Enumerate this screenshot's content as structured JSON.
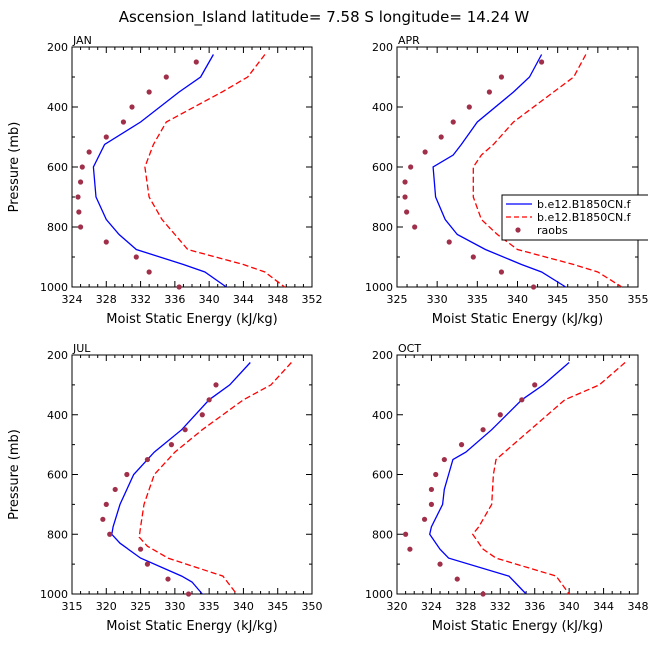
{
  "figure_title": "Ascension_Island   latitude= 7.58 S longitude= 14.24 W",
  "legend": {
    "entries": [
      {
        "label": "b.e12.B1850CN.f",
        "style": "solid",
        "color": "#0000ff"
      },
      {
        "label": "b.e12.B1850CN.f",
        "style": "dashed",
        "color": "#ff0000"
      },
      {
        "label": "raobs",
        "style": "dots",
        "color": "#a0304a"
      }
    ]
  },
  "chart_data": [
    {
      "type": "line",
      "title": "JAN",
      "xlabel": "Moist Static Energy (kJ/kg)",
      "ylabel": "Pressure (mb)",
      "xlim": [
        324,
        352
      ],
      "xticks": [
        324,
        328,
        332,
        336,
        340,
        344,
        348,
        352
      ],
      "ylim": [
        200,
        1000
      ],
      "yticks": [
        200,
        400,
        600,
        800,
        1000
      ],
      "series": [
        {
          "style": "solid",
          "color": "#0000ff",
          "points": [
            [
              340.5,
              225
            ],
            [
              339,
              300
            ],
            [
              336.5,
              350
            ],
            [
              332,
              450
            ],
            [
              327.8,
              525
            ],
            [
              326.5,
              600
            ],
            [
              326.8,
              700
            ],
            [
              328,
              775
            ],
            [
              329.5,
              825
            ],
            [
              331.5,
              875
            ],
            [
              337,
              925
            ],
            [
              339.5,
              950
            ],
            [
              342,
              1000
            ]
          ]
        },
        {
          "style": "dashed",
          "color": "#ff0000",
          "points": [
            [
              346.5,
              225
            ],
            [
              344.5,
              300
            ],
            [
              341.5,
              350
            ],
            [
              335,
              450
            ],
            [
              333.5,
              525
            ],
            [
              332.5,
              600
            ],
            [
              333,
              700
            ],
            [
              334.5,
              775
            ],
            [
              336,
              825
            ],
            [
              337.5,
              875
            ],
            [
              344,
              925
            ],
            [
              346.5,
              950
            ],
            [
              348.8,
              1000
            ]
          ]
        },
        {
          "style": "dots",
          "color": "#a0304a",
          "points": [
            [
              338.5,
              250
            ],
            [
              335,
              300
            ],
            [
              333,
              350
            ],
            [
              331,
              400
            ],
            [
              330,
              450
            ],
            [
              328,
              500
            ],
            [
              326,
              550
            ],
            [
              325.2,
              600
            ],
            [
              325,
              650
            ],
            [
              324.7,
              700
            ],
            [
              324.8,
              750
            ],
            [
              325,
              800
            ],
            [
              328,
              850
            ],
            [
              331.5,
              900
            ],
            [
              333,
              950
            ],
            [
              336.5,
              1000
            ]
          ]
        }
      ]
    },
    {
      "type": "line",
      "title": "APR",
      "xlabel": "Moist Static Energy (kJ/kg)",
      "ylabel": "",
      "xlim": [
        325,
        355
      ],
      "xticks": [
        325,
        330,
        335,
        340,
        345,
        350,
        355
      ],
      "ylim": [
        200,
        1000
      ],
      "yticks": [
        200,
        400,
        600,
        800,
        1000
      ],
      "series": [
        {
          "style": "solid",
          "color": "#0000ff",
          "points": [
            [
              343,
              225
            ],
            [
              341.5,
              300
            ],
            [
              339.5,
              350
            ],
            [
              335,
              450
            ],
            [
              333,
              525
            ],
            [
              332,
              560
            ],
            [
              329.5,
              600
            ],
            [
              329.8,
              700
            ],
            [
              331,
              775
            ],
            [
              332.5,
              825
            ],
            [
              336,
              875
            ],
            [
              340.5,
              925
            ],
            [
              343,
              950
            ],
            [
              346,
              1000
            ]
          ]
        },
        {
          "style": "dashed",
          "color": "#ff0000",
          "points": [
            [
              348.5,
              225
            ],
            [
              347,
              300
            ],
            [
              344.5,
              350
            ],
            [
              339.5,
              450
            ],
            [
              337,
              525
            ],
            [
              335.5,
              560
            ],
            [
              334.5,
              600
            ],
            [
              334.5,
              700
            ],
            [
              335.5,
              775
            ],
            [
              337.5,
              825
            ],
            [
              340,
              875
            ],
            [
              347,
              925
            ],
            [
              350,
              950
            ],
            [
              353,
              1000
            ]
          ]
        },
        {
          "style": "dots",
          "color": "#a0304a",
          "points": [
            [
              343,
              250
            ],
            [
              338,
              300
            ],
            [
              336.5,
              350
            ],
            [
              334,
              400
            ],
            [
              332,
              450
            ],
            [
              330.5,
              500
            ],
            [
              328.5,
              550
            ],
            [
              326.7,
              600
            ],
            [
              326,
              650
            ],
            [
              326,
              700
            ],
            [
              326.2,
              750
            ],
            [
              327.2,
              800
            ],
            [
              331.5,
              850
            ],
            [
              334.5,
              900
            ],
            [
              338,
              950
            ],
            [
              342,
              1000
            ]
          ]
        }
      ]
    },
    {
      "type": "line",
      "title": "JUL",
      "xlabel": "Moist Static Energy (kJ/kg)",
      "ylabel": "Pressure (mb)",
      "xlim": [
        315,
        350
      ],
      "xticks": [
        315,
        320,
        325,
        330,
        335,
        340,
        345,
        350
      ],
      "ylim": [
        200,
        1000
      ],
      "yticks": [
        200,
        400,
        600,
        800,
        1000
      ],
      "series": [
        {
          "style": "solid",
          "color": "#0000ff",
          "points": [
            [
              341,
              225
            ],
            [
              338,
              300
            ],
            [
              335,
              350
            ],
            [
              331,
              450
            ],
            [
              327,
              525
            ],
            [
              324,
              600
            ],
            [
              322,
              700
            ],
            [
              321,
              775
            ],
            [
              320.8,
              800
            ],
            [
              322,
              830
            ],
            [
              325,
              880
            ],
            [
              331,
              940
            ],
            [
              332.5,
              960
            ],
            [
              334,
              1000
            ]
          ]
        },
        {
          "style": "dashed",
          "color": "#ff0000",
          "points": [
            [
              347,
              225
            ],
            [
              344,
              300
            ],
            [
              340,
              350
            ],
            [
              334,
              450
            ],
            [
              330,
              525
            ],
            [
              327,
              600
            ],
            [
              325.5,
              700
            ],
            [
              325,
              775
            ],
            [
              324.8,
              810
            ],
            [
              326,
              840
            ],
            [
              329,
              880
            ],
            [
              333,
              910
            ],
            [
              337,
              940
            ],
            [
              339,
              1000
            ]
          ]
        },
        {
          "style": "dots",
          "color": "#a0304a",
          "points": [
            [
              336,
              300
            ],
            [
              335,
              350
            ],
            [
              334,
              400
            ],
            [
              331.5,
              450
            ],
            [
              329.5,
              500
            ],
            [
              326,
              550
            ],
            [
              323,
              600
            ],
            [
              321.3,
              650
            ],
            [
              320,
              700
            ],
            [
              319.5,
              750
            ],
            [
              320.5,
              800
            ],
            [
              325,
              850
            ],
            [
              326,
              900
            ],
            [
              329,
              950
            ],
            [
              332,
              1000
            ]
          ]
        }
      ]
    },
    {
      "type": "line",
      "title": "OCT",
      "xlabel": "Moist Static Energy (kJ/kg)",
      "ylabel": "",
      "xlim": [
        320,
        348
      ],
      "xticks": [
        320,
        324,
        328,
        332,
        336,
        340,
        344,
        348
      ],
      "ylim": [
        200,
        1000
      ],
      "yticks": [
        200,
        400,
        600,
        800,
        1000
      ],
      "series": [
        {
          "style": "solid",
          "color": "#0000ff",
          "points": [
            [
              340,
              225
            ],
            [
              337,
              300
            ],
            [
              334.5,
              350
            ],
            [
              331,
              450
            ],
            [
              328,
              525
            ],
            [
              326.5,
              550
            ],
            [
              326,
              600
            ],
            [
              325.5,
              650
            ],
            [
              325.3,
              700
            ],
            [
              324,
              775
            ],
            [
              323.8,
              800
            ],
            [
              325,
              850
            ],
            [
              326,
              880
            ],
            [
              333,
              940
            ],
            [
              334,
              970
            ],
            [
              335,
              1000
            ]
          ]
        },
        {
          "style": "dashed",
          "color": "#ff0000",
          "points": [
            [
              346.5,
              225
            ],
            [
              343.5,
              300
            ],
            [
              339.5,
              350
            ],
            [
              335.5,
              450
            ],
            [
              332.5,
              525
            ],
            [
              331.5,
              550
            ],
            [
              331.2,
              600
            ],
            [
              331,
              700
            ],
            [
              329.5,
              775
            ],
            [
              328.8,
              800
            ],
            [
              330,
              850
            ],
            [
              331.5,
              880
            ],
            [
              338.5,
              940
            ],
            [
              340,
              1000
            ]
          ]
        },
        {
          "style": "dots",
          "color": "#a0304a",
          "points": [
            [
              336,
              300
            ],
            [
              334.5,
              350
            ],
            [
              332,
              400
            ],
            [
              330,
              450
            ],
            [
              327.5,
              500
            ],
            [
              325.5,
              550
            ],
            [
              324.5,
              600
            ],
            [
              324,
              650
            ],
            [
              324,
              700
            ],
            [
              323.2,
              750
            ],
            [
              321,
              800
            ],
            [
              321.5,
              850
            ],
            [
              325,
              900
            ],
            [
              327,
              950
            ],
            [
              330,
              1000
            ]
          ]
        }
      ]
    }
  ]
}
